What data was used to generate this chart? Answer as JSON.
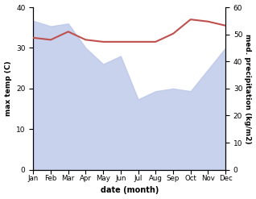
{
  "months": [
    "Jan",
    "Feb",
    "Mar",
    "Apr",
    "May",
    "Jun",
    "Jul",
    "Aug",
    "Sep",
    "Oct",
    "Nov",
    "Dec"
  ],
  "month_indices": [
    1,
    2,
    3,
    4,
    5,
    6,
    7,
    8,
    9,
    10,
    11,
    12
  ],
  "temp_max": [
    32.5,
    32.0,
    34.0,
    32.0,
    31.5,
    31.5,
    31.5,
    31.5,
    33.5,
    37.0,
    36.5,
    35.5
  ],
  "precip": [
    55.0,
    53.0,
    54.0,
    45.0,
    39.0,
    42.0,
    26.0,
    29.0,
    30.0,
    29.0,
    37.0,
    45.0
  ],
  "temp_color": "#c0504d",
  "precip_fill_color": "#b8c4e8",
  "temp_ylim": [
    0,
    40
  ],
  "precip_ylim": [
    0,
    60
  ],
  "temp_yticks": [
    0,
    10,
    20,
    30,
    40
  ],
  "precip_yticks": [
    0,
    10,
    20,
    30,
    40,
    50,
    60
  ],
  "xlabel": "date (month)",
  "ylabel_left": "max temp (C)",
  "ylabel_right": "med. precipitation (kg/m2)",
  "background_color": "#ffffff",
  "fig_width": 3.18,
  "fig_height": 2.47
}
